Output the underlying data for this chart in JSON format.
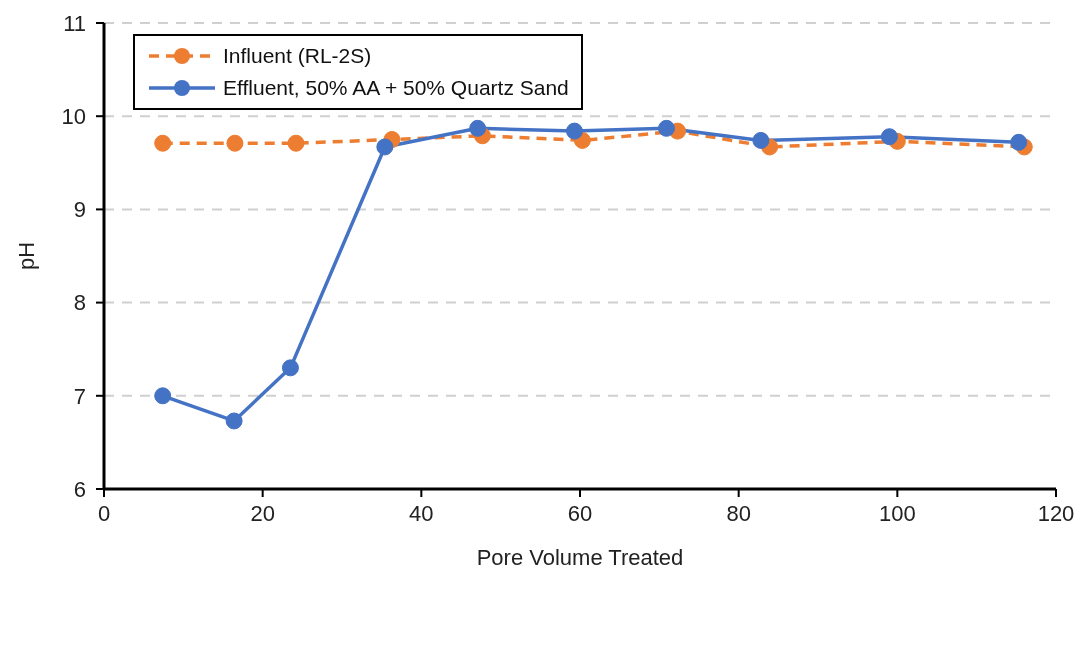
{
  "chart_data": {
    "type": "line",
    "xlabel": "Pore Volume Treated",
    "ylabel": "pH",
    "xlim": [
      0,
      120
    ],
    "xticks": [
      0,
      20,
      40,
      60,
      80,
      100,
      120
    ],
    "ylim": [
      6,
      11
    ],
    "yticks": [
      6,
      7,
      8,
      9,
      10,
      11
    ],
    "grid": "y",
    "legend": "top left",
    "marker": "circle",
    "series": [
      {
        "name": "Influent (RL-2S)",
        "color": "#ed7d31",
        "line_style": "dashed",
        "x": [
          7.4,
          16.5,
          24.2,
          36.3,
          47.7,
          60.3,
          72.3,
          83.9,
          100,
          116
        ],
        "values": [
          9.71,
          9.71,
          9.71,
          9.75,
          9.79,
          9.74,
          9.84,
          9.67,
          9.73,
          9.67
        ]
      },
      {
        "name": "Effluent, 50% AA + 50% Quartz Sand",
        "color": "#4472c4",
        "line_style": "solid",
        "x": [
          7.4,
          16.4,
          23.5,
          35.4,
          47.1,
          59.3,
          70.9,
          82.8,
          99,
          115.3
        ],
        "values": [
          7.0,
          6.73,
          7.3,
          9.67,
          9.87,
          9.84,
          9.87,
          9.74,
          9.78,
          9.72
        ]
      }
    ]
  }
}
